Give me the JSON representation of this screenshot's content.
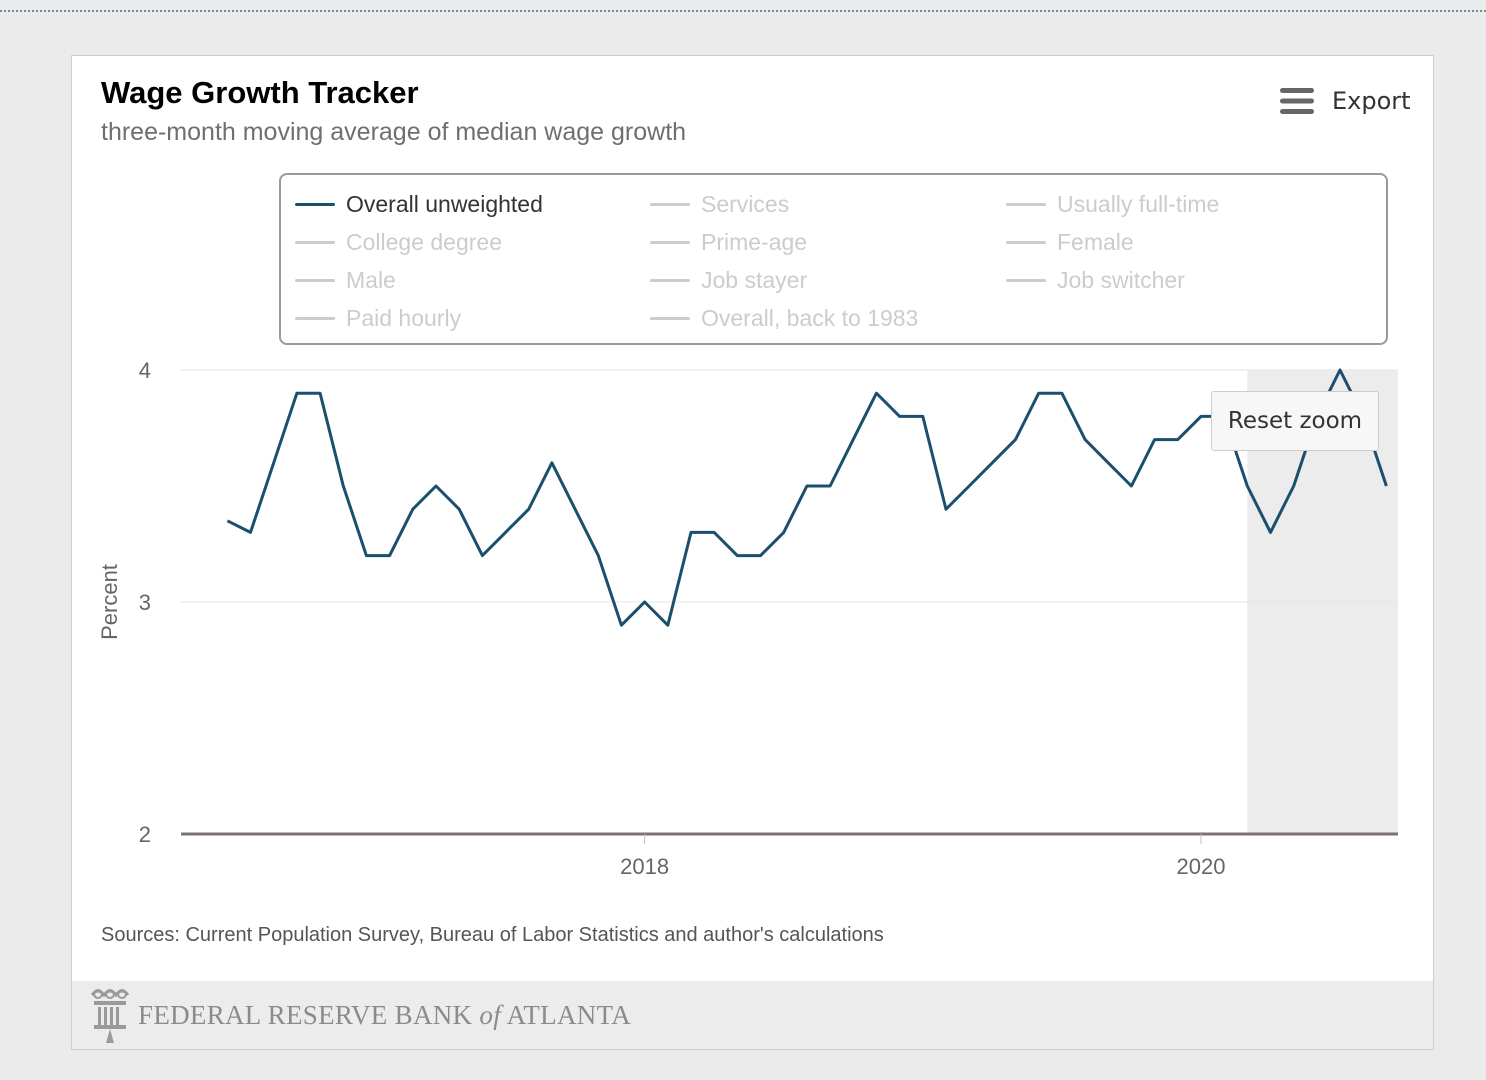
{
  "header": {
    "title": "Wage Growth Tracker",
    "subtitle": "three-month moving average of median wage growth"
  },
  "toolbar": {
    "export_label": "Export",
    "export_icon": "hamburger-menu-icon",
    "reset_zoom_label": "Reset zoom"
  },
  "legend": {
    "items": [
      {
        "label": "Overall unweighted",
        "active": true
      },
      {
        "label": "Services",
        "active": false
      },
      {
        "label": "Usually full-time",
        "active": false
      },
      {
        "label": "College degree",
        "active": false
      },
      {
        "label": "Prime-age",
        "active": false
      },
      {
        "label": "Female",
        "active": false
      },
      {
        "label": "Male",
        "active": false
      },
      {
        "label": "Job stayer",
        "active": false
      },
      {
        "label": "Job switcher",
        "active": false
      },
      {
        "label": "Paid hourly",
        "active": false
      },
      {
        "label": "Overall, back to 1983",
        "active": false
      }
    ]
  },
  "chart_data": {
    "type": "line",
    "ylabel": "Percent",
    "ylim": [
      2,
      4
    ],
    "yticks": [
      "2",
      "3",
      "4"
    ],
    "xticks": [
      "2018",
      "2020"
    ],
    "grid": true,
    "legend_position": "top",
    "series": [
      {
        "name": "Overall unweighted",
        "color": "#1b4f6e",
        "x": [
          "2016-07",
          "2016-08",
          "2016-09",
          "2016-10",
          "2016-11",
          "2016-12",
          "2017-01",
          "2017-02",
          "2017-03",
          "2017-04",
          "2017-05",
          "2017-06",
          "2017-07",
          "2017-08",
          "2017-09",
          "2017-10",
          "2017-11",
          "2017-12",
          "2018-01",
          "2018-02",
          "2018-03",
          "2018-04",
          "2018-05",
          "2018-06",
          "2018-07",
          "2018-08",
          "2018-09",
          "2018-10",
          "2018-11",
          "2018-12",
          "2019-01",
          "2019-02",
          "2019-03",
          "2019-04",
          "2019-05",
          "2019-06",
          "2019-07",
          "2019-08",
          "2019-09",
          "2019-10",
          "2019-11",
          "2019-12",
          "2020-01",
          "2020-02",
          "2020-03",
          "2020-04",
          "2020-05",
          "2020-06",
          "2020-07",
          "2020-08",
          "2020-09"
        ],
        "values": [
          3.35,
          3.3,
          3.6,
          3.9,
          3.9,
          3.5,
          3.2,
          3.2,
          3.4,
          3.5,
          3.4,
          3.2,
          3.3,
          3.4,
          3.6,
          3.4,
          3.2,
          2.9,
          3.0,
          2.9,
          3.3,
          3.3,
          3.2,
          3.2,
          3.3,
          3.5,
          3.5,
          3.7,
          3.9,
          3.8,
          3.8,
          3.4,
          3.5,
          3.6,
          3.7,
          3.9,
          3.9,
          3.7,
          3.6,
          3.5,
          3.7,
          3.7,
          3.8,
          3.8,
          3.5,
          3.3,
          3.5,
          3.8,
          4.0,
          3.8,
          3.5
        ]
      }
    ],
    "highlighted_range": [
      "2020-03",
      "2020-09"
    ]
  },
  "footer": {
    "sources": "Sources: Current Population Survey, Bureau of Labor Statistics and author's calculations",
    "bank_name_part1": "FEDERAL RESERVE BANK ",
    "bank_name_of": "of",
    "bank_name_part2": " ATLANTA",
    "logo": "federal-reserve-seal-icon"
  },
  "colors": {
    "series_line": "#1b4f6e",
    "legend_inactive": "#cccccc",
    "baseline": "#7d7272",
    "plot_band": "#ececec"
  }
}
